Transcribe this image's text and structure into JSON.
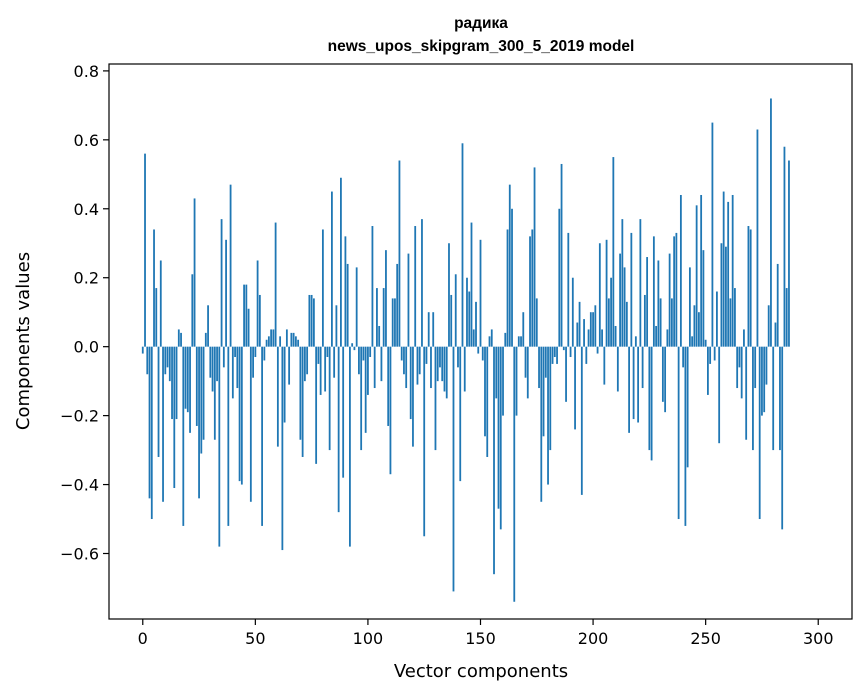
{
  "chart_data": {
    "type": "bar",
    "title": "радика",
    "subtitle": "news_upos_skipgram_300_5_2019 model",
    "xlabel": "Vector components",
    "ylabel": "Components values",
    "xlim": [
      -15,
      315
    ],
    "ylim": [
      -0.79,
      0.82
    ],
    "xticks": [
      0,
      50,
      100,
      150,
      200,
      250,
      300
    ],
    "yticks": [
      -0.6,
      -0.4,
      -0.2,
      0.0,
      0.2,
      0.4,
      0.6,
      0.8
    ],
    "xtick_labels": [
      "0",
      "50",
      "100",
      "150",
      "200",
      "250",
      "300"
    ],
    "ytick_labels": [
      "−0.6",
      "−0.4",
      "−0.2",
      "0.0",
      "0.2",
      "0.4",
      "0.6",
      "0.8"
    ],
    "grid": false,
    "bar_color": "#1f77b4",
    "values": [
      -0.02,
      0.56,
      -0.08,
      -0.44,
      -0.5,
      0.34,
      0.17,
      -0.32,
      0.25,
      -0.45,
      -0.08,
      -0.06,
      -0.1,
      -0.21,
      -0.41,
      -0.21,
      0.05,
      0.04,
      -0.52,
      -0.18,
      -0.19,
      -0.25,
      0.21,
      0.43,
      -0.23,
      -0.44,
      -0.31,
      -0.27,
      0.04,
      0.12,
      -0.09,
      -0.13,
      -0.27,
      -0.1,
      -0.58,
      0.37,
      -0.06,
      0.31,
      -0.52,
      0.47,
      -0.15,
      -0.03,
      -0.12,
      -0.39,
      -0.4,
      0.18,
      0.18,
      0.11,
      -0.45,
      -0.09,
      -0.03,
      0.25,
      0.15,
      -0.52,
      -0.04,
      0.02,
      0.03,
      0.05,
      0.05,
      0.36,
      -0.29,
      0.03,
      -0.59,
      -0.22,
      0.05,
      -0.11,
      0.04,
      0.04,
      0.03,
      0.02,
      -0.27,
      -0.32,
      -0.1,
      -0.08,
      0.15,
      0.15,
      0.14,
      -0.34,
      -0.05,
      -0.14,
      0.34,
      -0.13,
      -0.03,
      -0.3,
      0.45,
      -0.09,
      0.12,
      -0.48,
      0.49,
      -0.38,
      0.32,
      0.24,
      -0.58,
      0.01,
      -0.01,
      0.23,
      -0.08,
      -0.3,
      -0.04,
      -0.25,
      -0.14,
      -0.03,
      0.35,
      -0.12,
      0.17,
      0.06,
      -0.1,
      0.17,
      0.28,
      -0.23,
      -0.37,
      0.14,
      0.14,
      0.24,
      0.54,
      -0.04,
      -0.08,
      -0.12,
      0.27,
      -0.21,
      -0.29,
      0.35,
      -0.11,
      -0.08,
      0.37,
      -0.55,
      -0.05,
      0.1,
      -0.12,
      0.1,
      -0.3,
      -0.1,
      -0.06,
      -0.1,
      -0.13,
      -0.15,
      0.3,
      0.15,
      -0.71,
      0.21,
      -0.06,
      -0.39,
      0.59,
      -0.13,
      0.2,
      0.16,
      0.36,
      0.05,
      0.13,
      -0.02,
      0.31,
      -0.04,
      -0.26,
      -0.32,
      0.03,
      0.05,
      -0.66,
      -0.15,
      -0.47,
      -0.53,
      -0.2,
      0.04,
      0.34,
      0.47,
      0.4,
      -0.74,
      -0.2,
      0.03,
      0.03,
      0.1,
      -0.09,
      -0.15,
      0.32,
      0.34,
      0.52,
      0.14,
      -0.12,
      -0.45,
      -0.26,
      -0.09,
      -0.4,
      -0.3,
      -0.05,
      -0.03,
      -0.05,
      0.4,
      0.53,
      -0.01,
      -0.16,
      0.33,
      -0.03,
      0.2,
      -0.24,
      0.07,
      0.13,
      -0.43,
      0.08,
      -0.05,
      0.05,
      0.1,
      0.1,
      0.12,
      -0.02,
      0.3,
      0.05,
      -0.11,
      0.31,
      0.14,
      0.2,
      0.55,
      0.06,
      -0.13,
      0.27,
      0.37,
      0.23,
      0.13,
      -0.25,
      0.33,
      -0.21,
      0.03,
      -0.22,
      0.37,
      -0.12,
      0.15,
      0.26,
      -0.3,
      -0.33,
      0.32,
      0.06,
      0.25,
      0.14,
      -0.16,
      -0.19,
      0.05,
      0.27,
      0.14,
      0.32,
      0.33,
      -0.5,
      0.44,
      -0.06,
      -0.52,
      -0.35,
      0.23,
      0.03,
      0.12,
      0.41,
      0.1,
      0.44,
      0.28,
      0.02,
      -0.14,
      -0.05,
      0.65,
      -0.04,
      0.16,
      -0.28,
      0.3,
      0.45,
      0.29,
      0.42,
      0.14,
      0.44,
      0.17,
      -0.12,
      -0.06,
      -0.15,
      0.05,
      -0.27,
      0.35,
      0.34,
      -0.3,
      -0.12,
      0.63,
      -0.5,
      -0.2,
      -0.19,
      -0.11,
      0.12,
      0.72,
      -0.3,
      0.07,
      0.24,
      -0.3,
      -0.53,
      0.58,
      0.17,
      0.54
    ]
  }
}
